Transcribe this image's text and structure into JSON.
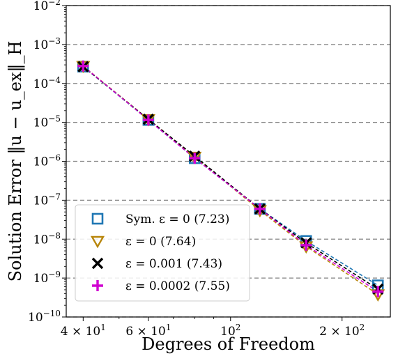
{
  "chart_data": {
    "type": "scatter",
    "xscale": "log",
    "yscale": "log",
    "xlim": [
      36,
      270
    ],
    "ylim": [
      1e-10,
      0.01
    ],
    "xlabel": "Degrees of Freedom",
    "ylabel": "Solution Error ‖u − u_ex‖_H",
    "grid": "horizontal-dashed",
    "legend_position": "lower-left",
    "x_ticks": [
      {
        "value": 40,
        "mantissa": "4",
        "exp": "1"
      },
      {
        "value": 60,
        "mantissa": "6",
        "exp": "1"
      },
      {
        "value": 100,
        "mantissa": "",
        "exp": "2"
      },
      {
        "value": 200,
        "mantissa": "2",
        "exp": "2"
      }
    ],
    "y_ticks": [
      {
        "value": 0.01,
        "exp": "−2"
      },
      {
        "value": 0.001,
        "exp": "−3"
      },
      {
        "value": 0.0001,
        "exp": "−4"
      },
      {
        "value": 1e-05,
        "exp": "−5"
      },
      {
        "value": 1e-06,
        "exp": "−6"
      },
      {
        "value": 1e-07,
        "exp": "−7"
      },
      {
        "value": 1e-08,
        "exp": "−8"
      },
      {
        "value": 1e-09,
        "exp": "−9"
      },
      {
        "value": 1e-10,
        "exp": "−10"
      }
    ],
    "x": [
      40,
      60,
      80,
      120,
      160,
      250
    ],
    "series": [
      {
        "name": "Sym. ε = 0 (7.23)",
        "marker": "square",
        "color": "#1f77b4",
        "values": [
          0.00027,
          1.15e-05,
          1.2e-06,
          6e-08,
          9e-09,
          6.5e-10
        ]
      },
      {
        "name": "ε = 0 (7.64)",
        "marker": "triangle-down",
        "color": "#b8860b",
        "values": [
          0.00028,
          1.2e-05,
          1.3e-06,
          5.5e-08,
          6.5e-09,
          3.8e-10
        ]
      },
      {
        "name": "ε = 0.001 (7.43)",
        "marker": "x",
        "color": "#000000",
        "values": [
          0.00027,
          1.2e-05,
          1.35e-06,
          6e-08,
          8e-09,
          5.2e-10
        ]
      },
      {
        "name": "ε = 0.0002 (7.55)",
        "marker": "plus",
        "color": "#d100d1",
        "values": [
          0.00028,
          1.15e-05,
          1.2e-06,
          6e-08,
          7e-09,
          4.5e-10
        ]
      }
    ]
  }
}
